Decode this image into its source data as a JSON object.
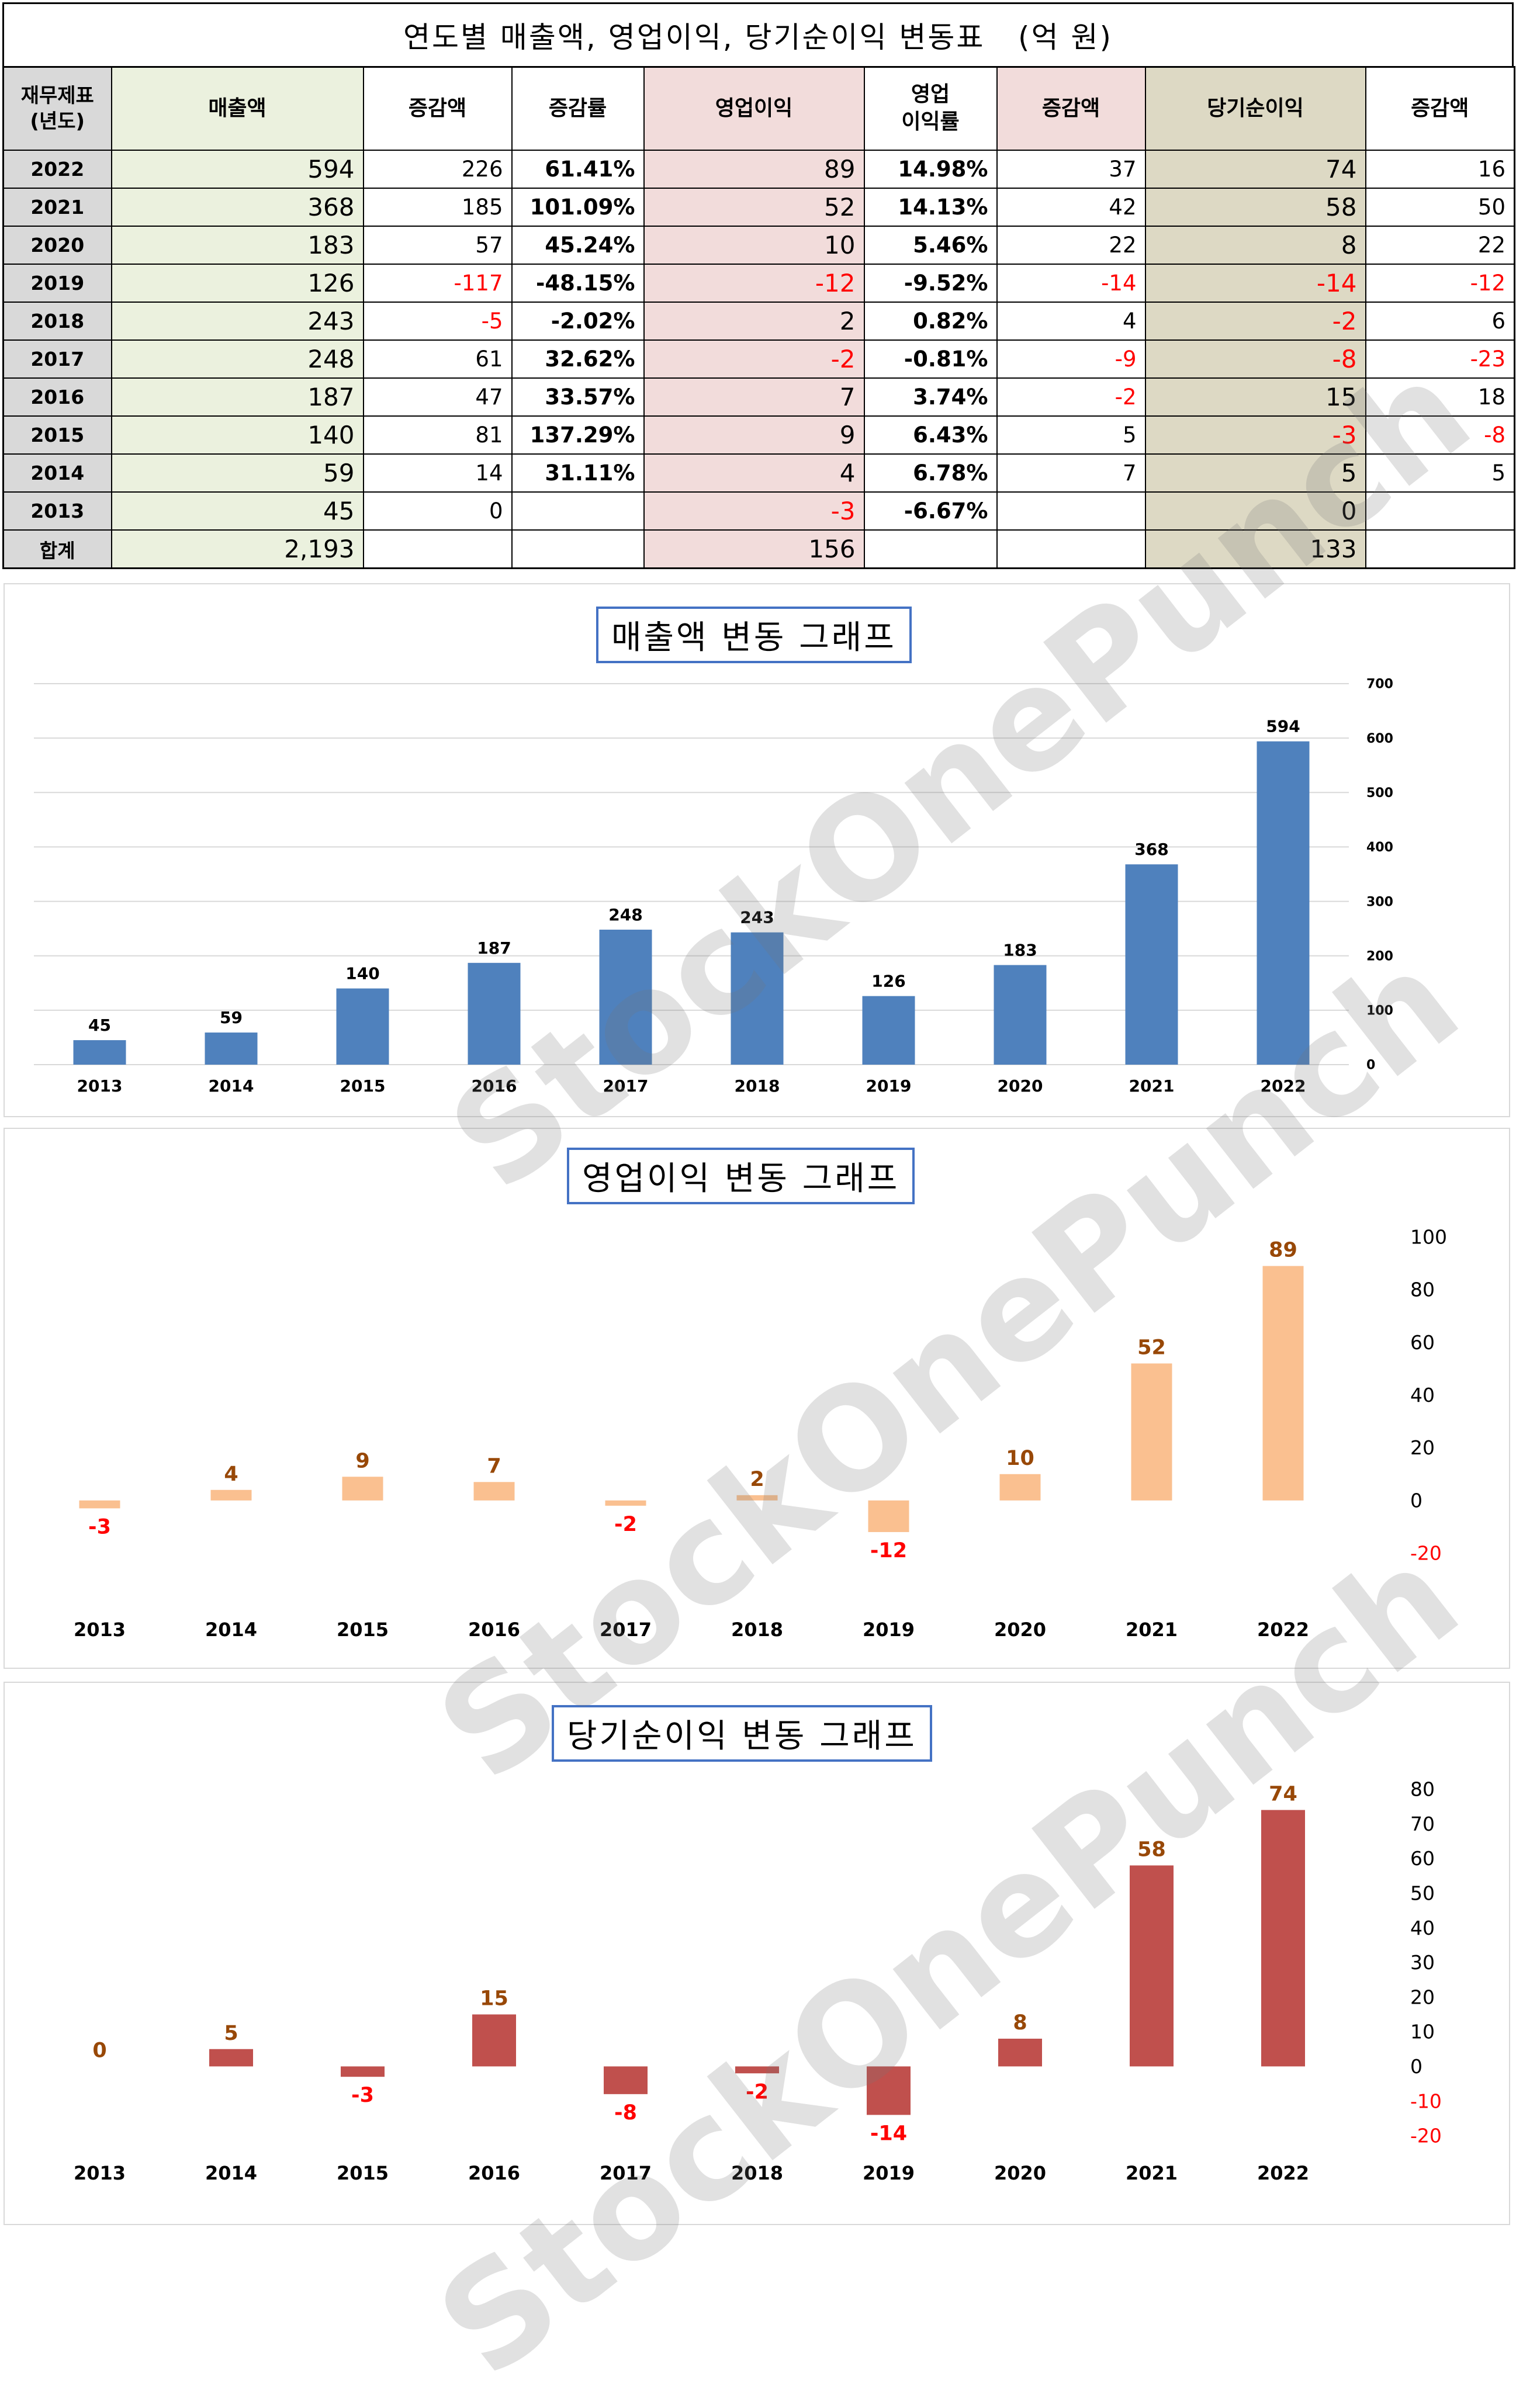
{
  "table": {
    "title": "연도별 매출액, 영업이익, 당기순이익 변동표   (억 원)",
    "headers": {
      "year": "재무제표\n(년도)",
      "sales": "매출액",
      "sales_chg": "증감액",
      "sales_rate": "증감률",
      "op": "영업이익",
      "op_margin": "영업\n이익률",
      "op_chg": "증감액",
      "net": "당기순이익",
      "net_chg": "증감액"
    },
    "rows": [
      {
        "year": "2022",
        "sales": "594",
        "sales_chg": "226",
        "sales_rate": "61.41%",
        "op": "89",
        "op_margin": "14.98%",
        "op_chg": "37",
        "net": "74",
        "net_chg": "16"
      },
      {
        "year": "2021",
        "sales": "368",
        "sales_chg": "185",
        "sales_rate": "101.09%",
        "op": "52",
        "op_margin": "14.13%",
        "op_chg": "42",
        "net": "58",
        "net_chg": "50"
      },
      {
        "year": "2020",
        "sales": "183",
        "sales_chg": "57",
        "sales_rate": "45.24%",
        "op": "10",
        "op_margin": "5.46%",
        "op_chg": "22",
        "net": "8",
        "net_chg": "22"
      },
      {
        "year": "2019",
        "sales": "126",
        "sales_chg": "-117",
        "sales_rate": "-48.15%",
        "op": "-12",
        "op_margin": "-9.52%",
        "op_chg": "-14",
        "net": "-14",
        "net_chg": "-12"
      },
      {
        "year": "2018",
        "sales": "243",
        "sales_chg": "-5",
        "sales_rate": "-2.02%",
        "op": "2",
        "op_margin": "0.82%",
        "op_chg": "4",
        "net": "-2",
        "net_chg": "6"
      },
      {
        "year": "2017",
        "sales": "248",
        "sales_chg": "61",
        "sales_rate": "32.62%",
        "op": "-2",
        "op_margin": "-0.81%",
        "op_chg": "-9",
        "net": "-8",
        "net_chg": "-23"
      },
      {
        "year": "2016",
        "sales": "187",
        "sales_chg": "47",
        "sales_rate": "33.57%",
        "op": "7",
        "op_margin": "3.74%",
        "op_chg": "-2",
        "net": "15",
        "net_chg": "18"
      },
      {
        "year": "2015",
        "sales": "140",
        "sales_chg": "81",
        "sales_rate": "137.29%",
        "op": "9",
        "op_margin": "6.43%",
        "op_chg": "5",
        "net": "-3",
        "net_chg": "-8"
      },
      {
        "year": "2014",
        "sales": "59",
        "sales_chg": "14",
        "sales_rate": "31.11%",
        "op": "4",
        "op_margin": "6.78%",
        "op_chg": "7",
        "net": "5",
        "net_chg": "5"
      },
      {
        "year": "2013",
        "sales": "45",
        "sales_chg": "0",
        "sales_rate": "",
        "op": "-3",
        "op_margin": "-6.67%",
        "op_chg": "",
        "net": "0",
        "net_chg": ""
      }
    ],
    "total": {
      "label": "합계",
      "sales": "2,193",
      "op": "156",
      "net": "133"
    }
  },
  "watermark": "StockOnePunch",
  "colors": {
    "sales_bar": "#4f81bd",
    "op_bar": "#fac090",
    "net_bar": "#c0504d",
    "negative": "#ff0000",
    "op_label": "#984807",
    "net_label": "#984807",
    "title_border": "#4472c4"
  },
  "chart_data": [
    {
      "type": "bar",
      "title": "매출액 변동 그래프",
      "categories": [
        "2013",
        "2014",
        "2015",
        "2016",
        "2017",
        "2018",
        "2019",
        "2020",
        "2021",
        "2022"
      ],
      "values": [
        45,
        59,
        140,
        187,
        248,
        243,
        126,
        183,
        368,
        594
      ],
      "ylim": [
        0,
        700
      ],
      "yticks": [
        0,
        100,
        200,
        300,
        400,
        500,
        600,
        700
      ],
      "grid": true,
      "y_axis_side": "right"
    },
    {
      "type": "bar",
      "title": "영업이익 변동 그래프",
      "categories": [
        "2013",
        "2014",
        "2015",
        "2016",
        "2017",
        "2018",
        "2019",
        "2020",
        "2021",
        "2022"
      ],
      "values": [
        -3,
        4,
        9,
        7,
        -2,
        2,
        -12,
        10,
        52,
        89
      ],
      "ylim": [
        -20,
        100
      ],
      "yticks": [
        -20,
        0,
        20,
        40,
        60,
        80,
        100
      ],
      "grid": false,
      "y_axis_side": "right"
    },
    {
      "type": "bar",
      "title": "당기순이익 변동 그래프",
      "categories": [
        "2013",
        "2014",
        "2015",
        "2016",
        "2017",
        "2018",
        "2019",
        "2020",
        "2021",
        "2022"
      ],
      "values": [
        0,
        5,
        -3,
        15,
        -8,
        -2,
        -14,
        8,
        58,
        74
      ],
      "ylim": [
        -20,
        80
      ],
      "yticks": [
        -20,
        -10,
        0,
        10,
        20,
        30,
        40,
        50,
        60,
        70,
        80
      ],
      "grid": false,
      "y_axis_side": "right"
    }
  ]
}
